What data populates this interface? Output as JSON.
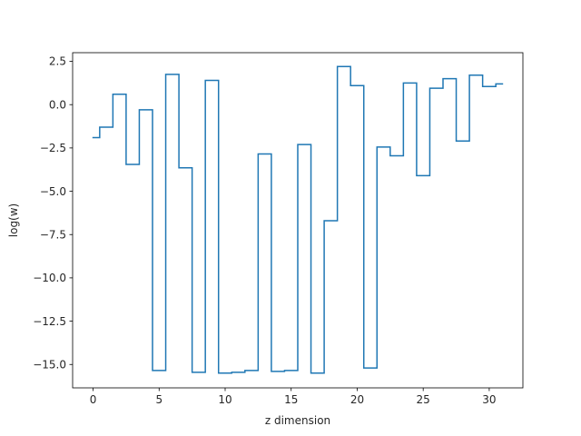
{
  "chart_data": {
    "type": "line",
    "drawstyle": "steps-mid",
    "title": "",
    "xlabel": "z dimension",
    "ylabel": "log(w)",
    "xlim": [
      -1.55,
      32.55
    ],
    "ylim": [
      -16.35,
      3.0
    ],
    "xticks": [
      0,
      5,
      10,
      15,
      20,
      25,
      30
    ],
    "yticks": [
      2.5,
      0.0,
      -2.5,
      -5.0,
      -7.5,
      -10.0,
      -12.5,
      -15.0
    ],
    "ytick_labels": [
      "2.5",
      "0.0",
      "−2.5",
      "−5.0",
      "−7.5",
      "−10.0",
      "−12.5",
      "−15.0"
    ],
    "grid": false,
    "color": "#1f77b4",
    "series": [
      {
        "x": [
          0,
          1,
          2,
          3,
          4,
          5,
          6,
          7,
          8,
          9,
          10,
          11,
          12,
          13,
          14,
          15,
          16,
          17,
          18,
          19,
          20,
          21,
          22,
          23,
          24,
          25,
          26,
          27,
          28,
          29,
          30,
          31
        ],
        "values": [
          -1.9,
          -1.3,
          0.6,
          -3.45,
          -0.3,
          -15.35,
          1.75,
          -3.65,
          -15.45,
          1.4,
          -15.5,
          -15.45,
          -15.35,
          -2.85,
          -15.4,
          -15.35,
          -2.3,
          -15.5,
          -6.7,
          2.2,
          1.1,
          -15.2,
          -2.45,
          -2.95,
          1.25,
          -4.1,
          0.95,
          1.5,
          -2.1,
          1.7,
          1.05,
          1.2
        ]
      }
    ]
  }
}
